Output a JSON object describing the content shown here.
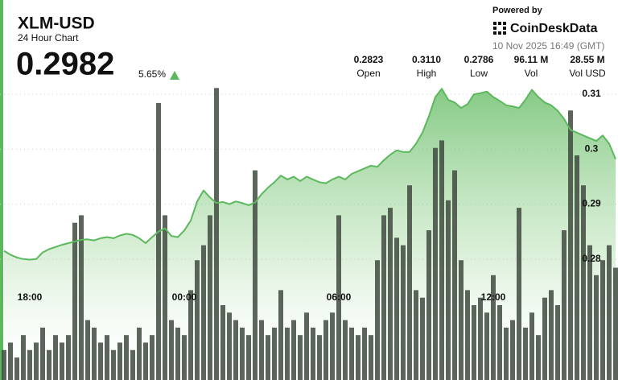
{
  "header": {
    "title": "XLM-USD",
    "subtitle": "24 Hour Chart",
    "price": "0.2982",
    "change": "5.65%",
    "powered_by": "Powered by",
    "brand": "CoinDeskData",
    "timestamp": "10 Nov 2025 16:49 (GMT)"
  },
  "stats": [
    {
      "value": "0.2823",
      "label": "Open"
    },
    {
      "value": "0.3110",
      "label": "High"
    },
    {
      "value": "0.2786",
      "label": "Low"
    },
    {
      "value": "96.11 M",
      "label": "Vol"
    },
    {
      "value": "28.55 M",
      "label": "Vol USD"
    }
  ],
  "chart_data": {
    "type": "line",
    "categories": [
      null,
      null,
      null,
      null,
      "18:00",
      null,
      null,
      null,
      null,
      null,
      null,
      null,
      null,
      null,
      null,
      null,
      null,
      null,
      null,
      null,
      null,
      null,
      null,
      null,
      null,
      null,
      null,
      null,
      "00:00",
      null,
      null,
      null,
      null,
      null,
      null,
      null,
      null,
      null,
      null,
      null,
      null,
      null,
      null,
      null,
      null,
      null,
      null,
      null,
      null,
      null,
      null,
      null,
      "06:00",
      null,
      null,
      null,
      null,
      null,
      null,
      null,
      null,
      null,
      null,
      null,
      null,
      null,
      null,
      null,
      null,
      null,
      null,
      null,
      null,
      null,
      null,
      null,
      "12:00",
      null,
      null,
      null,
      null,
      null,
      null,
      null,
      null,
      null,
      null,
      null,
      null,
      null,
      null,
      null,
      null,
      null,
      null,
      null
    ],
    "series": [
      {
        "color": "#5cb85c",
        "values": [
          0.2815,
          0.2808,
          0.2803,
          0.28,
          0.2799,
          0.28,
          0.2812,
          0.2818,
          0.2822,
          0.2826,
          0.2829,
          0.2832,
          0.2835,
          0.2836,
          0.2834,
          0.2838,
          0.284,
          0.2838,
          0.2843,
          0.2846,
          0.2844,
          0.2838,
          0.2829,
          0.284,
          0.285,
          0.2856,
          0.2842,
          0.284,
          0.2852,
          0.287,
          0.2905,
          0.2925,
          0.2912,
          0.2902,
          0.2904,
          0.29,
          0.2905,
          0.2902,
          0.2898,
          0.2903,
          0.2918,
          0.293,
          0.294,
          0.2952,
          0.2945,
          0.295,
          0.2942,
          0.295,
          0.2945,
          0.294,
          0.2938,
          0.2945,
          0.295,
          0.2945,
          0.2955,
          0.296,
          0.2965,
          0.297,
          0.2968,
          0.298,
          0.299,
          0.2998,
          0.2995,
          0.2995,
          0.301,
          0.303,
          0.306,
          0.3095,
          0.311,
          0.309,
          0.3085,
          0.3075,
          0.3082,
          0.31,
          0.3102,
          0.3105,
          0.3095,
          0.3088,
          0.308,
          0.3078,
          0.3075,
          0.309,
          0.3108,
          0.3095,
          0.3085,
          0.308,
          0.307,
          0.3055,
          0.3035,
          0.303,
          0.3025,
          0.302,
          0.3015,
          0.3025,
          0.301,
          0.2982
        ]
      },
      {
        "color": "#3f4a3f",
        "type": "bar",
        "axis": "y2",
        "values": [
          20,
          25,
          15,
          30,
          20,
          25,
          35,
          20,
          30,
          25,
          30,
          105,
          110,
          40,
          35,
          25,
          30,
          20,
          25,
          30,
          20,
          35,
          25,
          30,
          185,
          110,
          40,
          35,
          30,
          60,
          80,
          90,
          110,
          195,
          50,
          45,
          40,
          35,
          30,
          140,
          40,
          30,
          35,
          60,
          35,
          40,
          30,
          45,
          35,
          30,
          40,
          45,
          110,
          40,
          35,
          30,
          35,
          30,
          80,
          110,
          115,
          95,
          90,
          130,
          60,
          55,
          100,
          155,
          160,
          120,
          140,
          80,
          60,
          50,
          55,
          45,
          70,
          50,
          35,
          40,
          115,
          35,
          45,
          30,
          55,
          60,
          50,
          100,
          180,
          150,
          130,
          90,
          70,
          80,
          90,
          75
        ]
      }
    ],
    "ylim": [
      0.258,
      0.3125
    ],
    "yticks": [
      0.31,
      0.3,
      0.29,
      0.28
    ],
    "y2lim": [
      0,
      200
    ],
    "grid": true
  }
}
